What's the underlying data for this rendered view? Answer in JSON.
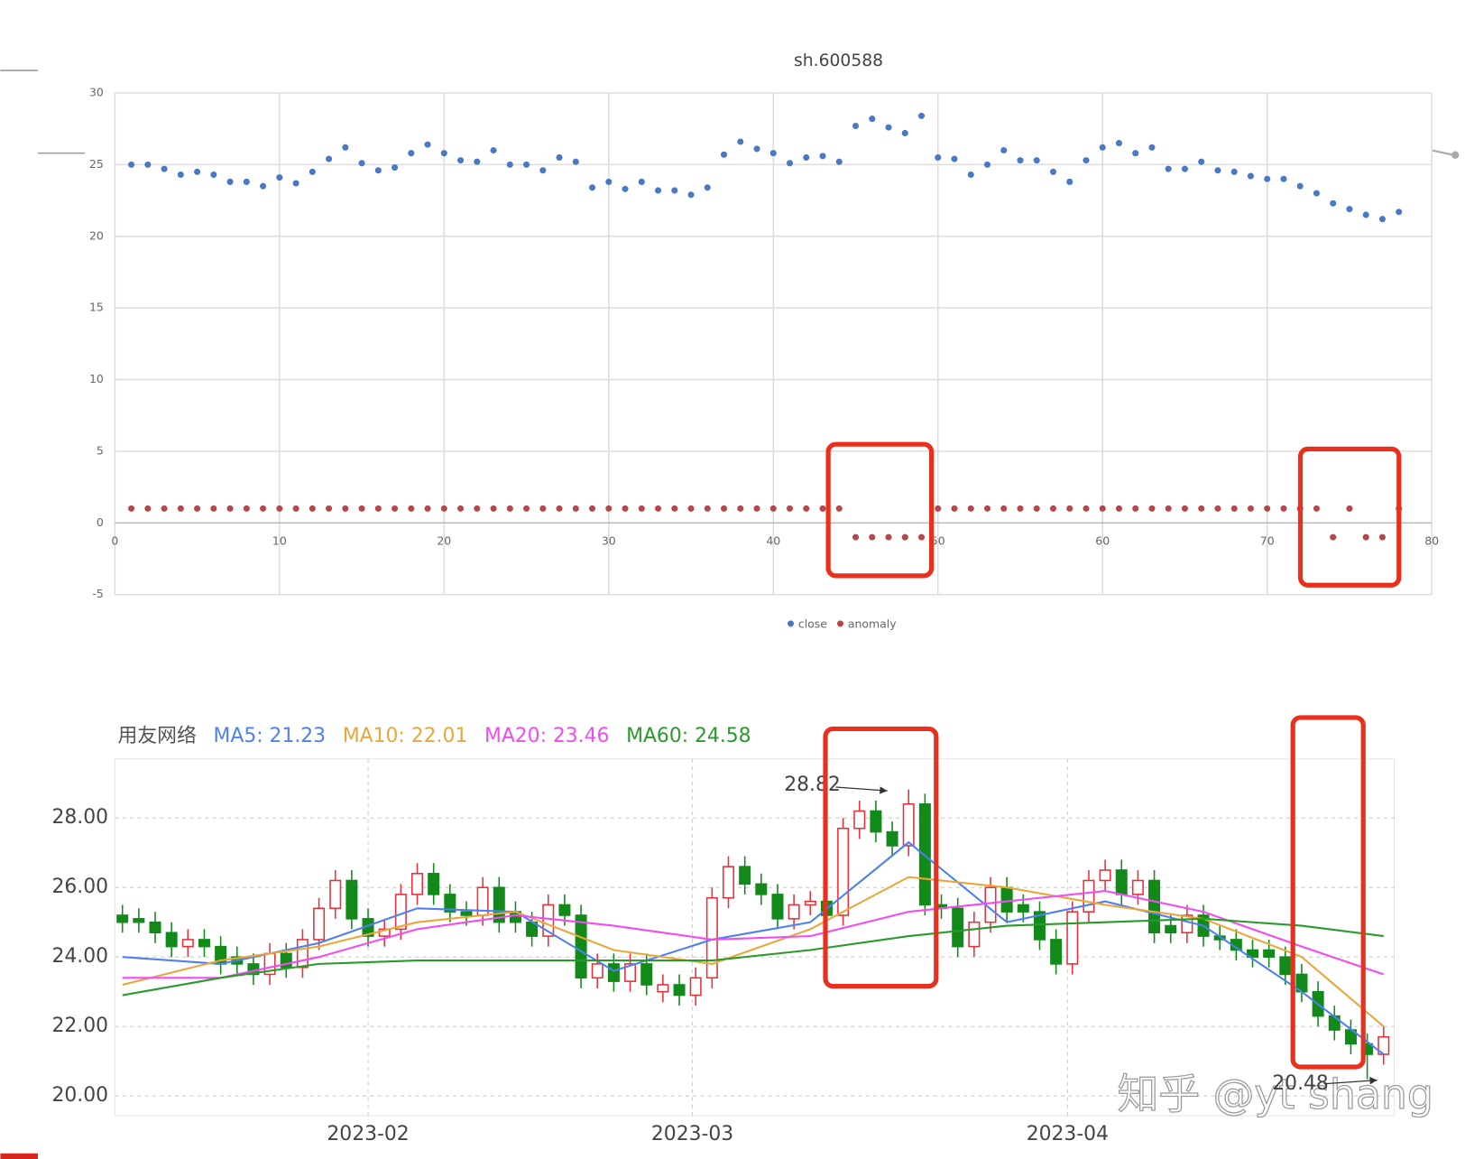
{
  "chart_data": [
    {
      "type": "scatter",
      "title": "sh.600588",
      "x": [
        1,
        2,
        3,
        4,
        5,
        6,
        7,
        8,
        9,
        10,
        11,
        12,
        13,
        14,
        15,
        16,
        17,
        18,
        19,
        20,
        21,
        22,
        23,
        24,
        25,
        26,
        27,
        28,
        29,
        30,
        31,
        32,
        33,
        34,
        35,
        36,
        37,
        38,
        39,
        40,
        41,
        42,
        43,
        44,
        45,
        46,
        47,
        48,
        49,
        50,
        51,
        52,
        53,
        54,
        55,
        56,
        57,
        58,
        59,
        60,
        61,
        62,
        63,
        64,
        65,
        66,
        67,
        68,
        69,
        70,
        71,
        72,
        73,
        74,
        75,
        76,
        77,
        78
      ],
      "series": [
        {
          "name": "close",
          "color": "#4a78c4",
          "values": [
            25.0,
            25.0,
            24.7,
            24.3,
            24.5,
            24.3,
            23.8,
            23.8,
            23.5,
            24.1,
            23.7,
            24.5,
            25.4,
            26.2,
            25.1,
            24.6,
            24.8,
            25.8,
            26.4,
            25.8,
            25.3,
            25.2,
            26.0,
            25.0,
            25.0,
            24.6,
            25.5,
            25.2,
            23.4,
            23.8,
            23.3,
            23.8,
            23.2,
            23.2,
            22.9,
            23.4,
            25.7,
            26.6,
            26.1,
            25.8,
            25.1,
            25.5,
            25.6,
            25.2,
            27.7,
            28.2,
            27.6,
            27.2,
            28.4,
            25.5,
            25.4,
            24.3,
            25.0,
            26.0,
            25.3,
            25.3,
            24.5,
            23.8,
            25.3,
            26.2,
            26.5,
            25.8,
            26.2,
            24.7,
            24.7,
            25.2,
            24.6,
            24.5,
            24.2,
            24.0,
            24.0,
            23.5,
            23.0,
            22.3,
            21.9,
            21.5,
            21.2,
            21.7
          ]
        },
        {
          "name": "anomaly",
          "color": "#b5474a",
          "values": [
            1,
            1,
            1,
            1,
            1,
            1,
            1,
            1,
            1,
            1,
            1,
            1,
            1,
            1,
            1,
            1,
            1,
            1,
            1,
            1,
            1,
            1,
            1,
            1,
            1,
            1,
            1,
            1,
            1,
            1,
            1,
            1,
            1,
            1,
            1,
            1,
            1,
            1,
            1,
            1,
            1,
            1,
            1,
            1,
            -1,
            -1,
            -1,
            -1,
            -1,
            1,
            1,
            1,
            1,
            1,
            1,
            1,
            1,
            1,
            1,
            1,
            1,
            1,
            1,
            1,
            1,
            1,
            1,
            1,
            1,
            1,
            1,
            1,
            1,
            -1,
            1,
            -1,
            -1,
            1
          ]
        }
      ],
      "xlim": [
        0,
        80
      ],
      "xticks": [
        0,
        10,
        20,
        30,
        40,
        50,
        60,
        70,
        80
      ],
      "ylim": [
        -5,
        30
      ],
      "yticks": [
        -5,
        0,
        5,
        10,
        15,
        20,
        25,
        30
      ],
      "grid": true,
      "legend": "bottom"
    },
    {
      "type": "candlestick",
      "title": "用友网络",
      "open": [
        25.2,
        25.1,
        25.0,
        24.7,
        24.3,
        24.5,
        24.3,
        24.0,
        23.8,
        23.5,
        24.1,
        23.7,
        24.5,
        25.4,
        26.2,
        25.1,
        24.6,
        24.8,
        25.8,
        26.4,
        25.8,
        25.3,
        25.2,
        26.0,
        25.3,
        25.0,
        24.6,
        25.5,
        25.2,
        23.4,
        23.8,
        23.3,
        23.8,
        23.0,
        23.2,
        22.9,
        23.4,
        25.7,
        26.6,
        26.1,
        25.8,
        25.1,
        25.5,
        25.6,
        25.2,
        27.7,
        28.2,
        27.6,
        27.2,
        28.4,
        25.5,
        25.4,
        24.3,
        25.0,
        26.0,
        25.5,
        25.3,
        24.5,
        23.8,
        25.3,
        26.2,
        26.5,
        25.8,
        26.2,
        24.9,
        24.7,
        25.2,
        24.6,
        24.5,
        24.2,
        24.2,
        24.0,
        23.5,
        23.0,
        22.3,
        21.9,
        21.5,
        21.2
      ],
      "high": [
        25.5,
        25.4,
        25.3,
        25.0,
        24.8,
        24.8,
        24.6,
        24.3,
        24.1,
        24.4,
        24.4,
        24.8,
        25.7,
        26.5,
        26.5,
        25.4,
        25.1,
        26.1,
        26.7,
        26.7,
        26.1,
        25.6,
        26.3,
        26.3,
        25.6,
        25.3,
        25.8,
        25.8,
        25.5,
        24.1,
        24.1,
        24.1,
        24.1,
        23.5,
        23.5,
        23.7,
        26.0,
        26.9,
        26.9,
        26.4,
        26.1,
        25.8,
        25.9,
        25.9,
        28.0,
        28.5,
        28.5,
        27.9,
        28.82,
        28.7,
        25.8,
        25.7,
        25.3,
        26.3,
        26.3,
        25.8,
        25.6,
        24.8,
        25.6,
        26.5,
        26.8,
        26.8,
        26.5,
        26.5,
        25.2,
        25.5,
        25.5,
        24.9,
        24.8,
        24.5,
        24.5,
        24.3,
        23.8,
        23.3,
        22.6,
        22.2,
        21.8,
        22.0
      ],
      "low": [
        24.7,
        24.7,
        24.4,
        24.0,
        24.0,
        24.0,
        23.5,
        23.5,
        23.2,
        23.2,
        23.4,
        23.4,
        24.2,
        25.1,
        24.8,
        24.3,
        24.3,
        24.5,
        25.5,
        25.5,
        25.0,
        24.9,
        24.9,
        24.7,
        24.7,
        24.3,
        24.3,
        24.9,
        23.1,
        23.1,
        23.0,
        23.0,
        22.9,
        22.7,
        22.6,
        22.6,
        23.1,
        25.4,
        25.8,
        25.5,
        24.8,
        24.8,
        25.2,
        24.9,
        24.9,
        27.4,
        27.3,
        26.9,
        26.9,
        25.2,
        25.1,
        24.0,
        24.0,
        24.7,
        25.0,
        25.0,
        24.2,
        23.5,
        23.5,
        25.0,
        25.9,
        25.5,
        25.5,
        24.4,
        24.4,
        24.4,
        24.3,
        24.2,
        23.9,
        23.7,
        23.7,
        23.2,
        22.7,
        22.0,
        21.6,
        21.2,
        20.48,
        20.9
      ],
      "close": [
        25.0,
        25.0,
        24.7,
        24.3,
        24.5,
        24.3,
        23.8,
        23.8,
        23.5,
        24.1,
        23.7,
        24.5,
        25.4,
        26.2,
        25.1,
        24.6,
        24.8,
        25.8,
        26.4,
        25.8,
        25.3,
        25.2,
        26.0,
        25.0,
        25.0,
        24.6,
        25.5,
        25.2,
        23.4,
        23.8,
        23.3,
        23.8,
        23.2,
        23.2,
        22.9,
        23.4,
        25.7,
        26.6,
        26.1,
        25.8,
        25.1,
        25.5,
        25.6,
        25.2,
        27.7,
        28.2,
        27.6,
        27.2,
        28.4,
        25.5,
        25.4,
        24.3,
        25.0,
        26.0,
        25.3,
        25.3,
        24.5,
        23.8,
        25.3,
        26.2,
        26.5,
        25.8,
        26.2,
        24.7,
        24.7,
        25.2,
        24.6,
        24.5,
        24.2,
        24.0,
        24.0,
        23.5,
        23.0,
        22.3,
        21.9,
        21.5,
        21.2,
        21.7
      ],
      "up_color": "#e8303a",
      "down_color": "#128a1a",
      "lines": [
        {
          "name": "MA5: 21.23",
          "color": "#4f7ff0",
          "x": [
            1,
            7,
            13,
            19,
            25,
            31,
            37,
            43,
            49,
            55,
            61,
            67,
            73,
            78
          ],
          "values": [
            24.0,
            23.8,
            24.4,
            25.4,
            25.3,
            23.6,
            24.5,
            25.0,
            27.3,
            25.0,
            25.6,
            24.9,
            23.0,
            21.2
          ]
        },
        {
          "name": "MA10: 22.01",
          "color": "#e9a73a",
          "x": [
            1,
            7,
            13,
            19,
            25,
            31,
            37,
            43,
            49,
            55,
            61,
            67,
            73,
            78
          ],
          "values": [
            23.2,
            23.9,
            24.3,
            25.0,
            25.3,
            24.2,
            23.8,
            24.8,
            26.3,
            26.0,
            25.5,
            25.1,
            24.0,
            22.0
          ]
        },
        {
          "name": "MA20: 23.46",
          "color": "#f04cf0",
          "x": [
            1,
            7,
            13,
            19,
            25,
            31,
            37,
            43,
            49,
            55,
            61,
            67,
            73,
            78
          ],
          "values": [
            23.4,
            23.4,
            24.0,
            24.8,
            25.2,
            24.9,
            24.5,
            24.6,
            25.3,
            25.6,
            25.9,
            25.3,
            24.3,
            23.5
          ]
        },
        {
          "name": "MA60: 24.58",
          "color": "#2a9a2a",
          "x": [
            1,
            7,
            13,
            19,
            25,
            31,
            37,
            43,
            49,
            55,
            61,
            67,
            73,
            78
          ],
          "values": [
            22.9,
            23.4,
            23.8,
            23.9,
            23.9,
            23.9,
            23.9,
            24.2,
            24.6,
            24.9,
            25.0,
            25.1,
            24.9,
            24.6
          ]
        }
      ],
      "xlim": [
        0.54,
        78.65
      ],
      "xticks": [
        {
          "value": 16,
          "label": "2023-02"
        },
        {
          "value": 35.8,
          "label": "2023-03"
        },
        {
          "value": 58.7,
          "label": "2023-04"
        }
      ],
      "ylim": [
        19.43,
        29.7
      ],
      "yticks": [
        {
          "value": 20,
          "label": "20.00"
        },
        {
          "value": 22,
          "label": "22.00"
        },
        {
          "value": 24,
          "label": "24.00"
        },
        {
          "value": 26,
          "label": "26.00"
        },
        {
          "value": 28,
          "label": "28.00"
        }
      ],
      "grid": true,
      "annotations": [
        {
          "text": "28.82"
        },
        {
          "text": "20.48"
        }
      ],
      "watermark": "知乎 @yt shang"
    }
  ]
}
